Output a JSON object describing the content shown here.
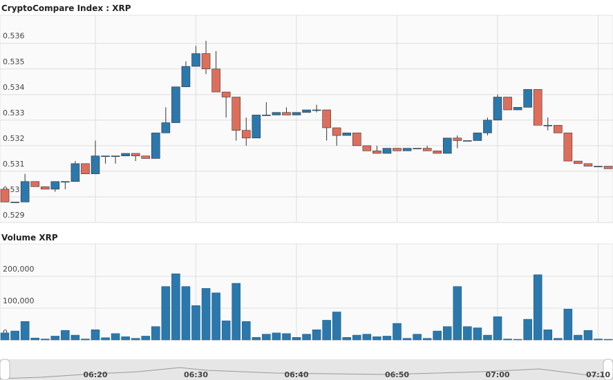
{
  "chart_data": [
    {
      "type": "candlestick",
      "title": "CryptoCompare Index : XRP",
      "x": [
        "06:11",
        "06:12",
        "06:13",
        "06:14",
        "06:15",
        "06:16",
        "06:17",
        "06:18",
        "06:19",
        "06:20",
        "06:21",
        "06:22",
        "06:23",
        "06:24",
        "06:25",
        "06:26",
        "06:27",
        "06:28",
        "06:29",
        "06:30",
        "06:31",
        "06:32",
        "06:33",
        "06:34",
        "06:35",
        "06:36",
        "06:37",
        "06:38",
        "06:39",
        "06:40",
        "06:41",
        "06:42",
        "06:43",
        "06:44",
        "06:45",
        "06:46",
        "06:47",
        "06:48",
        "06:49",
        "06:50",
        "06:51",
        "06:52",
        "06:53",
        "06:54",
        "06:55",
        "06:56",
        "06:57",
        "06:58",
        "06:59",
        "07:00",
        "07:01",
        "07:02",
        "07:03",
        "07:04",
        "07:05",
        "07:06",
        "07:07",
        "07:08",
        "07:09",
        "07:10",
        "07:11"
      ],
      "open": [
        0.5303,
        0.5298,
        0.5298,
        0.5306,
        0.5304,
        0.5303,
        0.5306,
        0.5306,
        0.5313,
        0.5309,
        0.5316,
        0.5316,
        0.5316,
        0.5317,
        0.5316,
        0.5315,
        0.5325,
        0.5329,
        0.5343,
        0.5351,
        0.5356,
        0.535,
        0.5341,
        0.5339,
        0.5326,
        0.5323,
        0.5332,
        0.5332,
        0.5333,
        0.5332,
        0.5333,
        0.5334,
        0.5334,
        0.5327,
        0.5324,
        0.5325,
        0.532,
        0.5318,
        0.5317,
        0.5319,
        0.5318,
        0.5319,
        0.5319,
        0.5318,
        0.5317,
        0.5323,
        0.5322,
        0.5322,
        0.5325,
        0.533,
        0.5339,
        0.5334,
        0.5335,
        0.5342,
        0.5328,
        0.5328,
        0.5325,
        0.5314,
        0.5313,
        0.5312,
        0.5312
      ],
      "high": [
        0.5303,
        0.5298,
        0.5309,
        0.5306,
        0.5304,
        0.5306,
        0.5306,
        0.5314,
        0.5313,
        0.5322,
        0.5316,
        0.5316,
        0.5317,
        0.5317,
        0.5316,
        0.5325,
        0.5335,
        0.5343,
        0.5353,
        0.5359,
        0.5361,
        0.5357,
        0.5341,
        0.5339,
        0.5331,
        0.5332,
        0.5337,
        0.5333,
        0.5335,
        0.5333,
        0.5334,
        0.5336,
        0.5334,
        0.5327,
        0.5325,
        0.5325,
        0.532,
        0.532,
        0.5319,
        0.5319,
        0.5319,
        0.5319,
        0.532,
        0.5318,
        0.5323,
        0.5324,
        0.5322,
        0.5325,
        0.5331,
        0.534,
        0.5339,
        0.5335,
        0.5342,
        0.5342,
        0.5331,
        0.5328,
        0.5325,
        0.5314,
        0.5313,
        0.5312,
        0.5312
      ],
      "low": [
        0.5298,
        0.5298,
        0.5298,
        0.5304,
        0.5303,
        0.5302,
        0.5303,
        0.5306,
        0.5309,
        0.5309,
        0.5313,
        0.5313,
        0.5316,
        0.5314,
        0.5315,
        0.5315,
        0.5325,
        0.5329,
        0.5343,
        0.5351,
        0.5348,
        0.5341,
        0.5331,
        0.5322,
        0.532,
        0.5323,
        0.5332,
        0.5332,
        0.5332,
        0.5332,
        0.5333,
        0.5333,
        0.5322,
        0.532,
        0.5324,
        0.532,
        0.5318,
        0.5317,
        0.5317,
        0.5318,
        0.5318,
        0.5319,
        0.5318,
        0.5317,
        0.5317,
        0.5319,
        0.5322,
        0.5322,
        0.5324,
        0.533,
        0.5334,
        0.5334,
        0.5335,
        0.5328,
        0.5326,
        0.5325,
        0.5314,
        0.5313,
        0.5312,
        0.5312,
        0.5311
      ],
      "close": [
        0.5298,
        0.5298,
        0.5306,
        0.5304,
        0.5303,
        0.5306,
        0.5306,
        0.5313,
        0.5309,
        0.5316,
        0.5316,
        0.5316,
        0.5317,
        0.5316,
        0.5315,
        0.5325,
        0.5329,
        0.5343,
        0.5351,
        0.5356,
        0.535,
        0.5341,
        0.5339,
        0.5326,
        0.5323,
        0.5332,
        0.5332,
        0.5333,
        0.5332,
        0.5333,
        0.5334,
        0.5334,
        0.5327,
        0.5324,
        0.5325,
        0.532,
        0.5318,
        0.5317,
        0.5319,
        0.5318,
        0.5319,
        0.5319,
        0.5318,
        0.5317,
        0.5323,
        0.5322,
        0.5322,
        0.5325,
        0.533,
        0.5339,
        0.5334,
        0.5335,
        0.5342,
        0.5328,
        0.5328,
        0.5325,
        0.5314,
        0.5313,
        0.5312,
        0.5312,
        0.5311
      ],
      "up_color": "#2b78ad",
      "down_color": "#de6e5c",
      "ylim": [
        0.529,
        0.5371
      ],
      "yticks": [
        0.529,
        0.53,
        0.531,
        0.532,
        0.533,
        0.534,
        0.535,
        0.536
      ],
      "xticks": [
        "06:20",
        "06:30",
        "06:40",
        "06:50",
        "07:00",
        "07:10"
      ],
      "grid": true
    },
    {
      "type": "bar",
      "title": "Volume XRP",
      "x": [
        "06:11",
        "06:12",
        "06:13",
        "06:14",
        "06:15",
        "06:16",
        "06:17",
        "06:18",
        "06:19",
        "06:20",
        "06:21",
        "06:22",
        "06:23",
        "06:24",
        "06:25",
        "06:26",
        "06:27",
        "06:28",
        "06:29",
        "06:30",
        "06:31",
        "06:32",
        "06:33",
        "06:34",
        "06:35",
        "06:36",
        "06:37",
        "06:38",
        "06:39",
        "06:40",
        "06:41",
        "06:42",
        "06:43",
        "06:44",
        "06:45",
        "06:46",
        "06:47",
        "06:48",
        "06:49",
        "06:50",
        "06:51",
        "06:52",
        "06:53",
        "06:54",
        "06:55",
        "06:56",
        "06:57",
        "06:58",
        "06:59",
        "07:00",
        "07:01",
        "07:02",
        "07:03",
        "07:04",
        "07:05",
        "07:06",
        "07:07",
        "07:08",
        "07:09",
        "07:10",
        "07:11"
      ],
      "values": [
        22000,
        28000,
        58000,
        6000,
        3000,
        12000,
        30000,
        15000,
        3000,
        32000,
        7000,
        20000,
        10000,
        5000,
        12000,
        42000,
        168000,
        208000,
        168000,
        108000,
        162000,
        148000,
        60000,
        178000,
        58000,
        8000,
        18000,
        22000,
        20000,
        8000,
        18000,
        32000,
        62000,
        88000,
        8000,
        15000,
        18000,
        10000,
        12000,
        52000,
        5000,
        18000,
        5000,
        28000,
        42000,
        168000,
        42000,
        38000,
        15000,
        73000,
        3000,
        2000,
        65000,
        205000,
        32000,
        5000,
        97000,
        15000,
        30000,
        3000,
        2000
      ],
      "color": "#2b78ad",
      "ylim": [
        0,
        302000
      ],
      "yticks": [
        0,
        {
          "value": 100000,
          "label": "100,000"
        },
        {
          "value": 200000,
          "label": "200,000"
        }
      ],
      "xticks": [
        "06:20",
        "06:30",
        "06:40",
        "06:50",
        "07:00",
        "07:10"
      ],
      "grid": true
    }
  ]
}
